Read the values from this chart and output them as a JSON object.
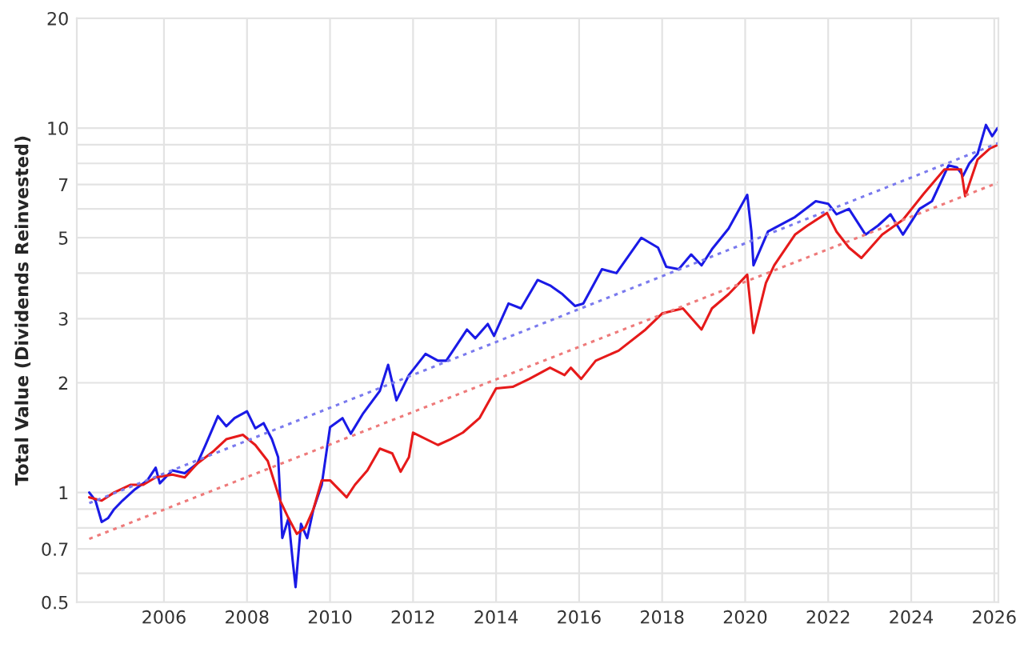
{
  "chart_data": {
    "type": "line",
    "ylabel": "Total Value (Dividends Reinvested)",
    "log": "y",
    "grid": true,
    "line_style": "solid",
    "marker": "none",
    "xlim": [
      2003.9,
      2026.1
    ],
    "xticks": [
      2006,
      2008,
      2010,
      2012,
      2014,
      2016,
      2018,
      2020,
      2022,
      2024,
      2026
    ],
    "ylim": [
      0.5,
      20
    ],
    "yticks": [
      0.5,
      {
        "value": 0.6,
        "label": null
      },
      0.7,
      {
        "value": 0.8,
        "label": null
      },
      {
        "value": 0.9,
        "label": null
      },
      1,
      2,
      3,
      {
        "value": 4,
        "label": null
      },
      5,
      {
        "value": 6,
        "label": null
      },
      7,
      {
        "value": 8,
        "label": null
      },
      {
        "value": 9,
        "label": null
      },
      10,
      20
    ],
    "series": [
      {
        "color": "#1a1ae6",
        "x": [
          2004.2,
          2004.35,
          2004.5,
          2004.65,
          2004.8,
          2005.0,
          2005.3,
          2005.6,
          2005.8,
          2005.9,
          2006.2,
          2006.5,
          2006.8,
          2007.0,
          2007.3,
          2007.5,
          2007.7,
          2008.0,
          2008.2,
          2008.4,
          2008.6,
          2008.75,
          2008.85,
          2009.0,
          2009.1,
          2009.17,
          2009.3,
          2009.45,
          2009.6,
          2009.8,
          2010.0,
          2010.3,
          2010.5,
          2010.8,
          2011.2,
          2011.4,
          2011.6,
          2011.9,
          2012.3,
          2012.6,
          2012.8,
          2013.3,
          2013.5,
          2013.8,
          2013.95,
          2014.3,
          2014.6,
          2015.0,
          2015.3,
          2015.6,
          2015.9,
          2016.1,
          2016.55,
          2016.9,
          2017.5,
          2017.9,
          2018.1,
          2018.4,
          2018.7,
          2018.95,
          2019.2,
          2019.6,
          2020.05,
          2020.15,
          2020.2,
          2020.55,
          2021.2,
          2021.7,
          2022.0,
          2022.2,
          2022.5,
          2022.9,
          2023.2,
          2023.5,
          2023.8,
          2024.2,
          2024.5,
          2024.9,
          2025.1,
          2025.25,
          2025.4,
          2025.6,
          2025.8,
          2025.95,
          2026.08
        ],
        "values": [
          1.0,
          0.95,
          0.83,
          0.85,
          0.9,
          0.95,
          1.02,
          1.08,
          1.17,
          1.06,
          1.15,
          1.13,
          1.2,
          1.35,
          1.62,
          1.52,
          1.6,
          1.67,
          1.5,
          1.55,
          1.4,
          1.25,
          0.75,
          0.85,
          0.65,
          0.55,
          0.82,
          0.75,
          0.9,
          1.05,
          1.51,
          1.6,
          1.45,
          1.65,
          1.9,
          2.24,
          1.79,
          2.1,
          2.4,
          2.3,
          2.3,
          2.8,
          2.65,
          2.9,
          2.69,
          3.3,
          3.2,
          3.83,
          3.7,
          3.5,
          3.25,
          3.3,
          4.1,
          4.0,
          5.0,
          4.7,
          4.16,
          4.1,
          4.5,
          4.2,
          4.65,
          5.3,
          6.56,
          5.2,
          4.2,
          5.2,
          5.7,
          6.3,
          6.2,
          5.8,
          6.0,
          5.1,
          5.4,
          5.8,
          5.1,
          6.0,
          6.3,
          7.9,
          7.8,
          7.4,
          8.0,
          8.5,
          10.2,
          9.5,
          10.0
        ]
      },
      {
        "color": "#e61a1a",
        "x": [
          2004.2,
          2004.5,
          2004.8,
          2005.2,
          2005.5,
          2005.8,
          2006.2,
          2006.5,
          2006.8,
          2007.2,
          2007.5,
          2007.9,
          2008.2,
          2008.5,
          2008.8,
          2009.0,
          2009.2,
          2009.4,
          2009.6,
          2009.8,
          2010.0,
          2010.4,
          2010.6,
          2010.9,
          2011.2,
          2011.5,
          2011.7,
          2011.9,
          2012.0,
          2012.6,
          2012.9,
          2013.2,
          2013.6,
          2014.0,
          2014.4,
          2014.8,
          2015.3,
          2015.65,
          2015.8,
          2016.05,
          2016.4,
          2016.95,
          2017.6,
          2018.0,
          2018.5,
          2018.95,
          2019.2,
          2019.6,
          2020.05,
          2020.2,
          2020.5,
          2020.7,
          2021.2,
          2021.5,
          2021.97,
          2022.2,
          2022.5,
          2022.8,
          2023.3,
          2023.8,
          2024.3,
          2024.8,
          2025.2,
          2025.3,
          2025.6,
          2025.9,
          2026.1
        ],
        "values": [
          0.97,
          0.95,
          1.0,
          1.05,
          1.05,
          1.1,
          1.12,
          1.1,
          1.2,
          1.3,
          1.4,
          1.44,
          1.35,
          1.22,
          0.95,
          0.85,
          0.77,
          0.8,
          0.9,
          1.08,
          1.08,
          0.97,
          1.05,
          1.15,
          1.32,
          1.28,
          1.14,
          1.25,
          1.46,
          1.35,
          1.4,
          1.46,
          1.6,
          1.93,
          1.95,
          2.05,
          2.2,
          2.1,
          2.2,
          2.05,
          2.3,
          2.45,
          2.8,
          3.1,
          3.2,
          2.8,
          3.2,
          3.5,
          3.96,
          2.74,
          3.76,
          4.2,
          5.1,
          5.4,
          5.85,
          5.2,
          4.7,
          4.4,
          5.1,
          5.6,
          6.6,
          7.7,
          7.7,
          6.5,
          8.2,
          8.8,
          9.0
        ]
      },
      {
        "color": "#7a7aee",
        "line_style": "dotted",
        "x": [
          2004.2,
          2026.1
        ],
        "values": [
          0.935,
          9.1
        ]
      },
      {
        "color": "#ee7a7a",
        "line_style": "dotted",
        "x": [
          2004.2,
          2026.1
        ],
        "values": [
          0.746,
          7.09
        ]
      }
    ]
  }
}
